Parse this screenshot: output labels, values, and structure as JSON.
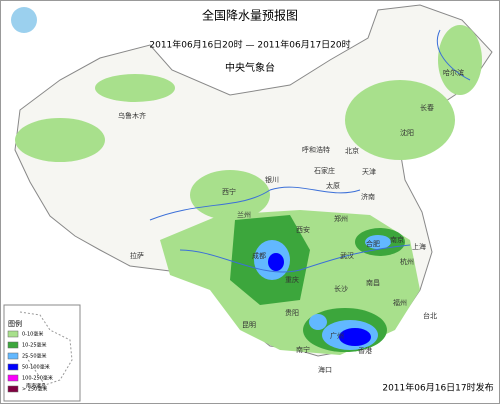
{
  "header": {
    "title": "全国降水量预报图",
    "period": "2011年06月16日20时 — 2011年06月17日20时",
    "issuer": "中央气象台"
  },
  "legend": {
    "title": "图例",
    "items": [
      {
        "label": "0-10毫米",
        "color": "#a8e08c"
      },
      {
        "label": "10-25毫米",
        "color": "#3ca63c"
      },
      {
        "label": "25-50毫米",
        "color": "#62b8ff"
      },
      {
        "label": "50-100毫米",
        "color": "#0000fe"
      },
      {
        "label": "100-250毫米",
        "color": "#fa00fa"
      },
      {
        "label": "> 250毫米",
        "color": "#800040"
      }
    ]
  },
  "inset": {
    "label": "南海诸岛"
  },
  "cities": [
    "乌鲁木齐",
    "哈尔滨",
    "长春",
    "沈阳",
    "呼和浩特",
    "北京",
    "天津",
    "石家庄",
    "太原",
    "济南",
    "银川",
    "西宁",
    "兰州",
    "郑州",
    "西安",
    "南京",
    "合肥",
    "上海",
    "成都",
    "武汉",
    "杭州",
    "拉萨",
    "重庆",
    "长沙",
    "南昌",
    "福州",
    "贵阳",
    "昆明",
    "台北",
    "南宁",
    "广州",
    "香港",
    "海口"
  ],
  "footer": {
    "issued": "2011年06月16日17时发布"
  }
}
